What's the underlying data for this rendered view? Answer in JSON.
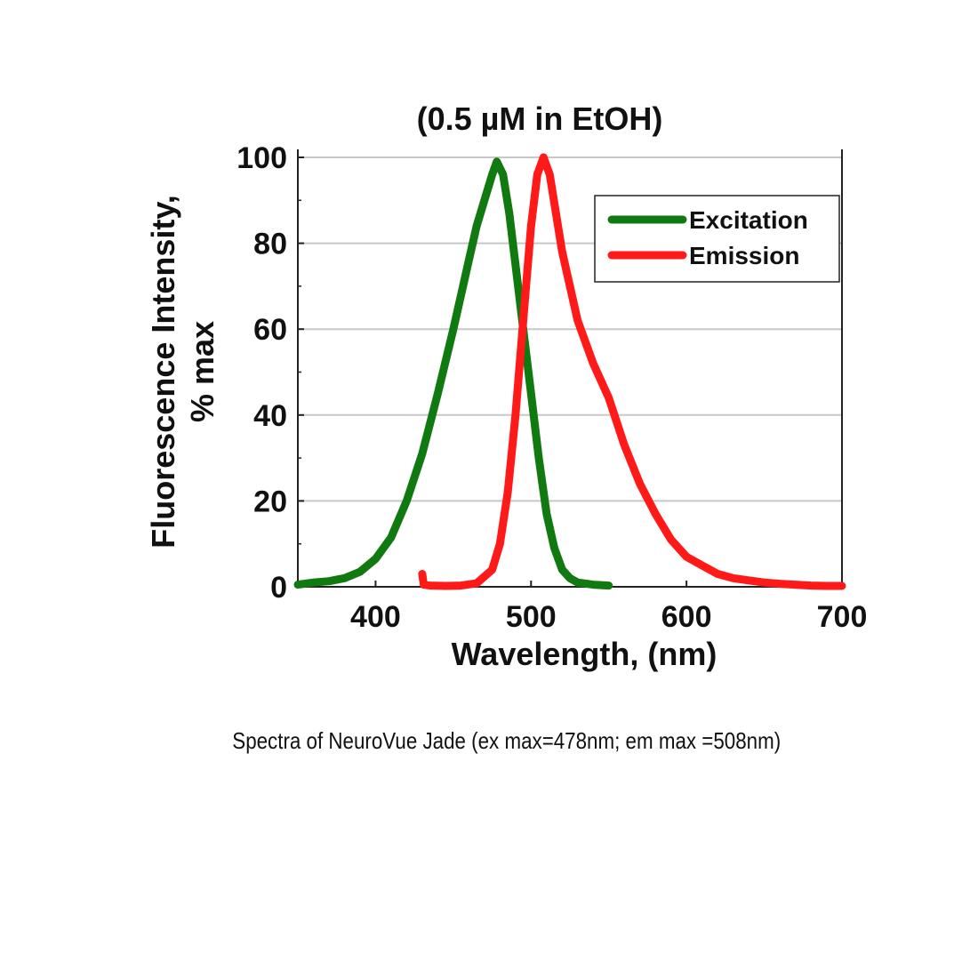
{
  "chart_data": {
    "type": "line",
    "title": "(0.5 µM in EtOH)",
    "xlabel": "Wavelength, (nm)",
    "ylabel_line1": "Fluorescence Intensity,",
    "ylabel_line2": "% max",
    "xlim": [
      350,
      700
    ],
    "ylim": [
      0,
      100
    ],
    "x_ticks": [
      400,
      500,
      600,
      700
    ],
    "x_tick_labels": [
      "400",
      "500",
      "600",
      "700"
    ],
    "y_ticks": [
      0,
      20,
      40,
      60,
      80,
      100
    ],
    "y_tick_labels": [
      "0",
      "20",
      "40",
      "60",
      "80",
      "100"
    ],
    "grid": true,
    "legend_position": "top-right",
    "series": [
      {
        "name": "Excitation",
        "color": "#107a10",
        "x": [
          350,
          360,
          370,
          380,
          390,
          400,
          410,
          420,
          430,
          440,
          450,
          455,
          460,
          465,
          470,
          475,
          478,
          482,
          486,
          490,
          495,
          500,
          505,
          510,
          515,
          520,
          525,
          530,
          540,
          550
        ],
        "y": [
          0.5,
          1,
          1.3,
          2,
          3.5,
          6.5,
          11.5,
          20,
          31,
          45,
          60,
          68,
          76,
          84,
          90,
          96,
          99,
          96,
          87,
          75,
          60,
          45,
          30,
          17,
          9,
          4,
          2,
          1,
          0.5,
          0.3
        ]
      },
      {
        "name": "Emission",
        "color": "#ff1a1a",
        "x": [
          430,
          431,
          435,
          445,
          455,
          465,
          475,
          480,
          485,
          490,
          495,
          500,
          504,
          508,
          512,
          516,
          520,
          525,
          530,
          540,
          550,
          560,
          570,
          580,
          590,
          600,
          610,
          620,
          630,
          640,
          650,
          660,
          670,
          680,
          690,
          700
        ],
        "y": [
          3,
          0.5,
          0.3,
          0.2,
          0.3,
          0.8,
          4,
          10,
          22,
          40,
          62,
          84,
          96,
          100,
          96,
          87,
          78,
          70,
          62,
          52,
          44,
          33,
          24,
          17,
          11,
          7,
          5,
          3,
          2,
          1.5,
          1,
          0.7,
          0.5,
          0.3,
          0.2,
          0.2
        ]
      }
    ]
  },
  "caption": "Spectra of NeuroVue Jade (ex max=478nm; em max =508nm)"
}
